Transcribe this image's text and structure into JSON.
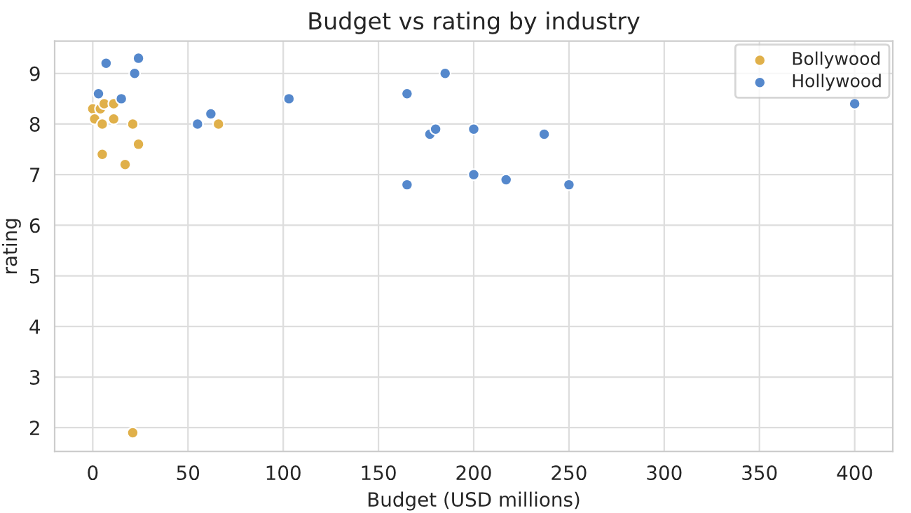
{
  "chart_data": {
    "type": "scatter",
    "title": "Budget vs rating by industry",
    "xlabel": "Budget (USD millions)",
    "ylabel": "rating",
    "series": [
      {
        "name": "Bollywood",
        "color": "#e0b04a",
        "x": [
          0,
          4,
          6,
          11,
          1,
          5,
          11,
          21,
          66,
          24,
          5,
          17,
          21
        ],
        "values": [
          8.3,
          8.3,
          8.4,
          8.4,
          8.1,
          8.0,
          8.1,
          8.0,
          8.0,
          7.6,
          7.4,
          7.2,
          1.9
        ]
      },
      {
        "name": "Hollywood",
        "color": "#5588cc",
        "x": [
          3,
          7,
          24,
          22,
          15,
          55,
          62,
          103,
          165,
          185,
          177,
          180,
          200,
          237,
          165,
          200,
          217,
          250,
          400
        ],
        "values": [
          8.6,
          9.2,
          9.3,
          9.0,
          8.5,
          8.0,
          8.2,
          8.5,
          8.6,
          9.0,
          7.8,
          7.9,
          7.9,
          7.8,
          6.8,
          7.0,
          6.9,
          6.8,
          8.4
        ]
      }
    ],
    "xlim": [
      -20,
      420
    ],
    "ylim": [
      1.53,
      9.64
    ],
    "xticks": [
      0,
      50,
      100,
      150,
      200,
      250,
      300,
      350,
      400
    ],
    "yticks": [
      2,
      3,
      4,
      5,
      6,
      7,
      8,
      9
    ],
    "grid": true,
    "legend": "top right",
    "marker": "circle"
  }
}
